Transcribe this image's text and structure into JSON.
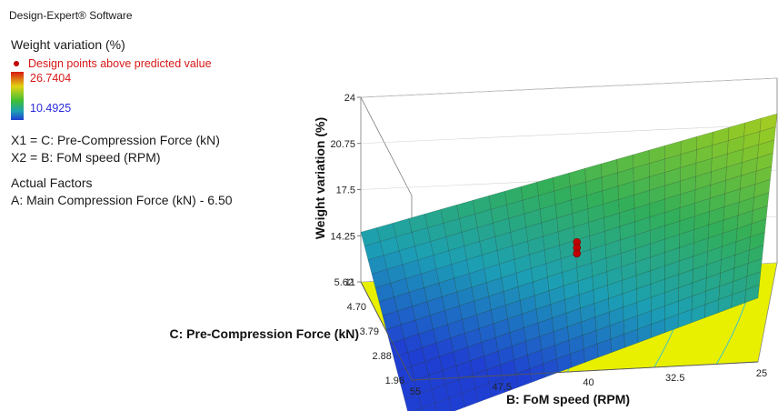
{
  "legend": {
    "software": "Design-Expert® Software",
    "response": "Weight variation (%)",
    "design_points_label": "Design points above predicted value",
    "scale_high": "26.7404",
    "scale_low": "10.4925",
    "x1": "X1 = C: Pre-Compression Force (kN)",
    "x2": "X2 = B: FoM speed (RPM)",
    "actual_factors_title": "Actual Factors",
    "actual_factor_a": "A: Main Compression Force (kN) - 6.50"
  },
  "colors": {
    "design_point": "#c00000",
    "legend_red_text": "#d81818",
    "legend_blue_text": "#2a2ae0",
    "floor_contour": "#e8f000",
    "surface_low": "#1f3fd2",
    "surface_high": "#d4b51a"
  },
  "chart_data": {
    "type": "surface3d",
    "z_axis": {
      "label": "Weight variation (%)",
      "ticks": [
        "11",
        "14.25",
        "17.5",
        "20.75",
        "24"
      ],
      "range": [
        11,
        24
      ]
    },
    "x_axis": {
      "label": "B: FoM speed (RPM)",
      "ticks": [
        "55",
        "47.5",
        "40",
        "32.5",
        "25"
      ],
      "range": [
        55,
        25
      ]
    },
    "y_axis": {
      "label": "C: Pre-Compression Force (kN)",
      "ticks": [
        "1.96",
        "2.88",
        "3.79",
        "4.70",
        "5.62"
      ],
      "range": [
        1.96,
        5.62
      ]
    },
    "surface_corners": [
      {
        "speed": 55,
        "force": 1.96,
        "weight_variation": 7.7
      },
      {
        "speed": 55,
        "force": 5.62,
        "weight_variation": 14.5
      },
      {
        "speed": 25,
        "force": 5.62,
        "weight_variation": 21.5
      },
      {
        "speed": 25,
        "force": 1.96,
        "weight_variation": 15.5
      }
    ],
    "design_points": [
      {
        "speed": 40,
        "force": 3.79,
        "weight_variation": 16.6
      },
      {
        "speed": 40,
        "force": 3.79,
        "weight_variation": 16.2
      },
      {
        "speed": 40,
        "force": 3.79,
        "weight_variation": 15.8
      }
    ],
    "floor": "contour",
    "grid": true
  }
}
